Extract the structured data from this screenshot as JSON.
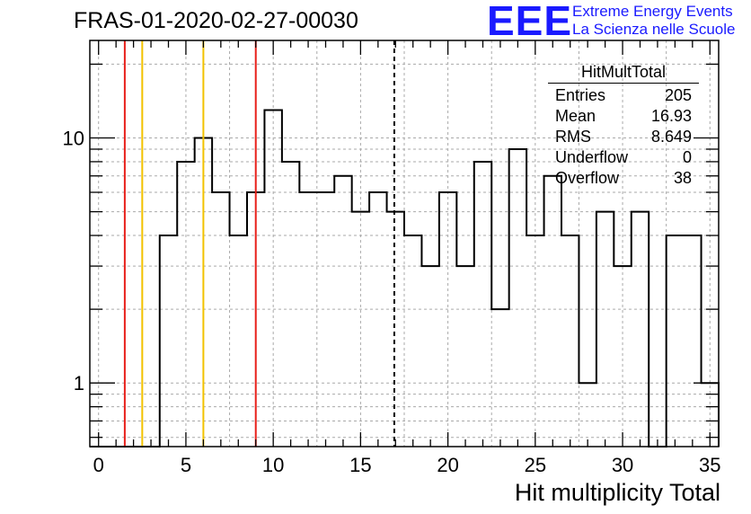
{
  "title": "FRAS-01-2020-02-27-00030",
  "logo": {
    "mark": "EEE",
    "line1": "Extreme Energy Events",
    "line2": "La Scienza nelle Scuole",
    "color": "#1a1aff"
  },
  "stats_box": {
    "name": "HitMultTotal",
    "rows": [
      {
        "label": "Entries",
        "value": "205"
      },
      {
        "label": "Mean",
        "value": "16.93"
      },
      {
        "label": "RMS",
        "value": "8.649"
      },
      {
        "label": "Underflow",
        "value": "0"
      },
      {
        "label": "Overflow",
        "value": "38"
      }
    ]
  },
  "chart_data": {
    "type": "histogram",
    "xlabel": "Hit multiplicity Total",
    "ylabel": "",
    "xlim": [
      -0.5,
      35.5
    ],
    "ylim": [
      0.55,
      25
    ],
    "yscale": "log",
    "grid": true,
    "bin_width": 1,
    "bin_edges_start": -0.5,
    "values": [
      0,
      0,
      0,
      0,
      4,
      8,
      10,
      6,
      4,
      6,
      13,
      8,
      6,
      6,
      7,
      5,
      6,
      5,
      4,
      3,
      6,
      3,
      8,
      2,
      9,
      4,
      7,
      4,
      1,
      5,
      3,
      5,
      0,
      4,
      4,
      1
    ],
    "x_ticks": [
      "0",
      "5",
      "10",
      "15",
      "20",
      "25",
      "30",
      "35"
    ],
    "x_tick_values": [
      0,
      5,
      10,
      15,
      20,
      25,
      30,
      35
    ],
    "y_ticks": [
      "1",
      "10"
    ],
    "y_tick_values": [
      1,
      10
    ],
    "vertical_lines": [
      {
        "x": 1.5,
        "color": "#e8201a",
        "style": "solid"
      },
      {
        "x": 2.5,
        "color": "#f2c200",
        "style": "solid"
      },
      {
        "x": 6.0,
        "color": "#f2c200",
        "style": "solid"
      },
      {
        "x": 9.0,
        "color": "#e8201a",
        "style": "solid"
      },
      {
        "x": 16.93,
        "color": "#000000",
        "style": "dashed"
      }
    ]
  }
}
